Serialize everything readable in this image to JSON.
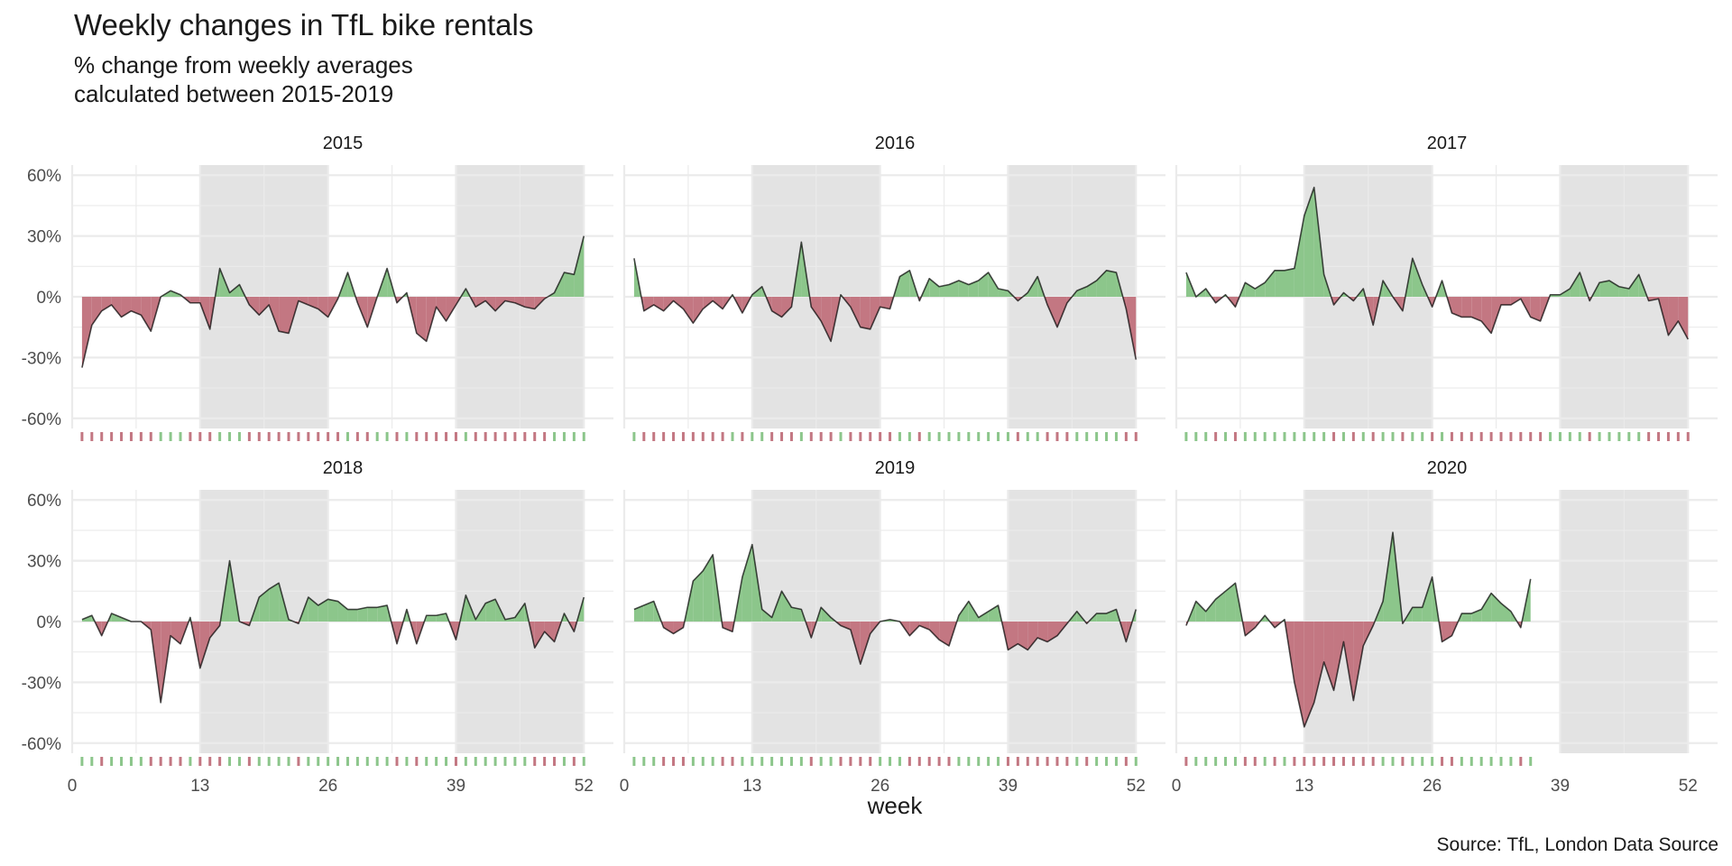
{
  "chart_data": {
    "type": "area",
    "title": "Weekly changes in TfL bike rentals",
    "subtitle": [
      "% change from weekly averages",
      "calculated between 2015-2019"
    ],
    "caption": "Source: TfL, London Data Source",
    "xlabel": "week",
    "ylabel": "",
    "x_ticks": [
      0,
      13,
      26,
      39,
      52
    ],
    "y_ticks": [
      -60,
      -30,
      0,
      30,
      60
    ],
    "y_tick_labels": [
      "-60%",
      "-30%",
      "0%",
      "30%",
      "60%"
    ],
    "xlim": [
      0,
      55
    ],
    "ylim": [
      -65,
      65
    ],
    "shaded_weeks": [
      [
        13,
        26
      ],
      [
        39,
        52
      ]
    ],
    "colors": {
      "positive": "#8cc68b",
      "negative": "#c37782",
      "shade": "#e3e3e3",
      "line": "#000000",
      "grid": "#ebebeb"
    },
    "panels": [
      {
        "year": "2015",
        "values": [
          -35,
          -14,
          -7,
          -4,
          -10,
          -7,
          -9,
          -17,
          0,
          3,
          1,
          -3,
          -3,
          -16,
          14,
          2,
          6,
          -4,
          -9,
          -4,
          -17,
          -18,
          -2,
          -4,
          -6,
          -10,
          -1,
          12,
          -3,
          -15,
          0,
          14,
          -3,
          2,
          -18,
          -22,
          -5,
          -12,
          -4,
          4,
          -5,
          -2,
          -7,
          -2,
          -3,
          -5,
          -6,
          -1,
          2,
          12,
          11,
          30
        ]
      },
      {
        "year": "2016",
        "values": [
          19,
          -7,
          -4,
          -7,
          -2,
          -6,
          -13,
          -6,
          -2,
          -6,
          1,
          -8,
          1,
          5,
          -7,
          -10,
          -5,
          27,
          -5,
          -12,
          -22,
          1,
          -5,
          -15,
          -16,
          -5,
          -6,
          10,
          13,
          -2,
          9,
          5,
          6,
          8,
          6,
          8,
          12,
          4,
          3,
          -2,
          2,
          10,
          -4,
          -15,
          -3,
          3,
          5,
          8,
          13,
          12,
          -6,
          -31
        ]
      },
      {
        "year": "2017",
        "values": [
          12,
          0,
          4,
          -3,
          1,
          -5,
          7,
          4,
          7,
          13,
          13,
          14,
          40,
          54,
          11,
          -4,
          2,
          -2,
          4,
          -14,
          8,
          0,
          -7,
          19,
          6,
          -5,
          8,
          -8,
          -10,
          -10,
          -12,
          -18,
          -4,
          -4,
          -1,
          -10,
          -12,
          1,
          1,
          4,
          12,
          -2,
          7,
          8,
          5,
          4,
          11,
          -2,
          -1,
          -19,
          -12,
          -21
        ]
      },
      {
        "year": "2018",
        "values": [
          1,
          3,
          -7,
          4,
          2,
          0,
          0,
          -4,
          -40,
          -7,
          -11,
          2,
          -23,
          -8,
          -2,
          30,
          0,
          -2,
          12,
          16,
          19,
          1,
          -1,
          12,
          8,
          11,
          10,
          6,
          6,
          7,
          7,
          8,
          -11,
          6,
          -11,
          3,
          3,
          4,
          -9,
          13,
          1,
          9,
          11,
          1,
          2,
          9,
          -13,
          -5,
          -10,
          4,
          -5,
          12
        ]
      },
      {
        "year": "2019",
        "values": [
          6,
          8,
          10,
          -3,
          -6,
          -3,
          20,
          25,
          33,
          -3,
          -5,
          22,
          38,
          6,
          2,
          15,
          7,
          6,
          -8,
          7,
          2,
          -2,
          -4,
          -21,
          -6,
          0,
          1,
          0,
          -7,
          -2,
          -4,
          -9,
          -12,
          3,
          10,
          2,
          5,
          8,
          -14,
          -11,
          -14,
          -8,
          -10,
          -7,
          -1,
          5,
          -1,
          4,
          4,
          6,
          -10,
          6
        ]
      },
      {
        "year": "2020",
        "values": [
          -2,
          10,
          5,
          11,
          15,
          19,
          -7,
          -3,
          3,
          -3,
          1,
          -30,
          -52,
          -40,
          -20,
          -34,
          -10,
          -39,
          -12,
          -2,
          10,
          44,
          -1,
          7,
          7,
          22,
          -10,
          -7,
          4,
          4,
          6,
          14,
          9,
          5,
          -3,
          21
        ]
      }
    ]
  }
}
